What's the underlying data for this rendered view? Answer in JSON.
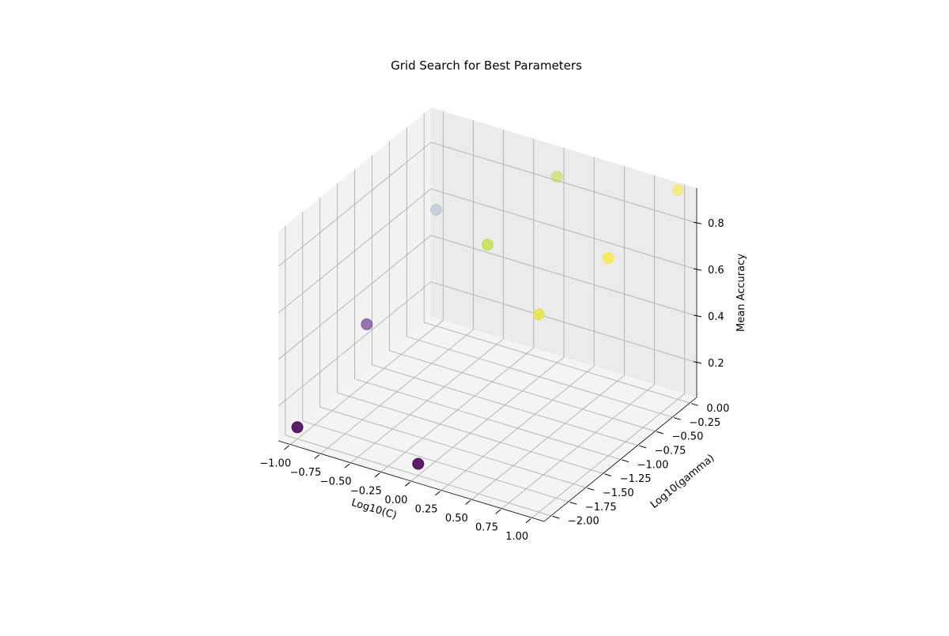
{
  "chart_data": {
    "type": "scatter",
    "projection": "3d",
    "title": "Grid Search for Best Parameters",
    "xlabel": "Log10(C)",
    "ylabel": "Log10(gamma)",
    "zlabel": "Mean Accuracy",
    "xlim": [
      -1.1,
      1.1
    ],
    "ylim": [
      -2.1,
      0.1
    ],
    "zlim": [
      0.05,
      0.95
    ],
    "xticks": [
      -1.0,
      -0.75,
      -0.5,
      -0.25,
      0.0,
      0.25,
      0.5,
      0.75,
      1.0
    ],
    "xtick_labels": [
      "−1.00",
      "−0.75",
      "−0.50",
      "−0.25",
      "0.00",
      "0.25",
      "0.50",
      "0.75",
      "1.00"
    ],
    "yticks": [
      -2.0,
      -1.75,
      -1.5,
      -1.25,
      -1.0,
      -0.75,
      -0.5,
      -0.25,
      0.0
    ],
    "ytick_labels": [
      "−2.00",
      "−1.75",
      "−1.50",
      "−1.25",
      "−1.00",
      "−0.75",
      "−0.50",
      "−0.25",
      "0.00"
    ],
    "zticks": [
      0.2,
      0.4,
      0.6,
      0.8
    ],
    "ztick_labels": [
      "0.2",
      "0.4",
      "0.6",
      "0.8"
    ],
    "grid": true,
    "colormap": "viridis",
    "points": [
      {
        "x": -1.0,
        "y": -2.0,
        "z": 0.1,
        "color": "#440154"
      },
      {
        "x": -1.0,
        "y": -1.0,
        "z": 0.3,
        "color": "#6c3a8e"
      },
      {
        "x": -1.0,
        "y": 0.0,
        "z": 0.55,
        "color": "#9fb2c8"
      },
      {
        "x": 0.0,
        "y": -2.0,
        "z": 0.1,
        "color": "#440154"
      },
      {
        "x": 0.0,
        "y": -1.0,
        "z": 0.8,
        "color": "#b5de2b"
      },
      {
        "x": 0.0,
        "y": 0.0,
        "z": 0.85,
        "color": "#b5de2b"
      },
      {
        "x": 1.0,
        "y": -2.0,
        "z": 0.9,
        "color": "#e8e24a"
      },
      {
        "x": 1.0,
        "y": -1.0,
        "z": 0.9,
        "color": "#fde725"
      },
      {
        "x": 1.0,
        "y": 0.0,
        "z": 0.95,
        "color": "#fde725"
      }
    ]
  }
}
